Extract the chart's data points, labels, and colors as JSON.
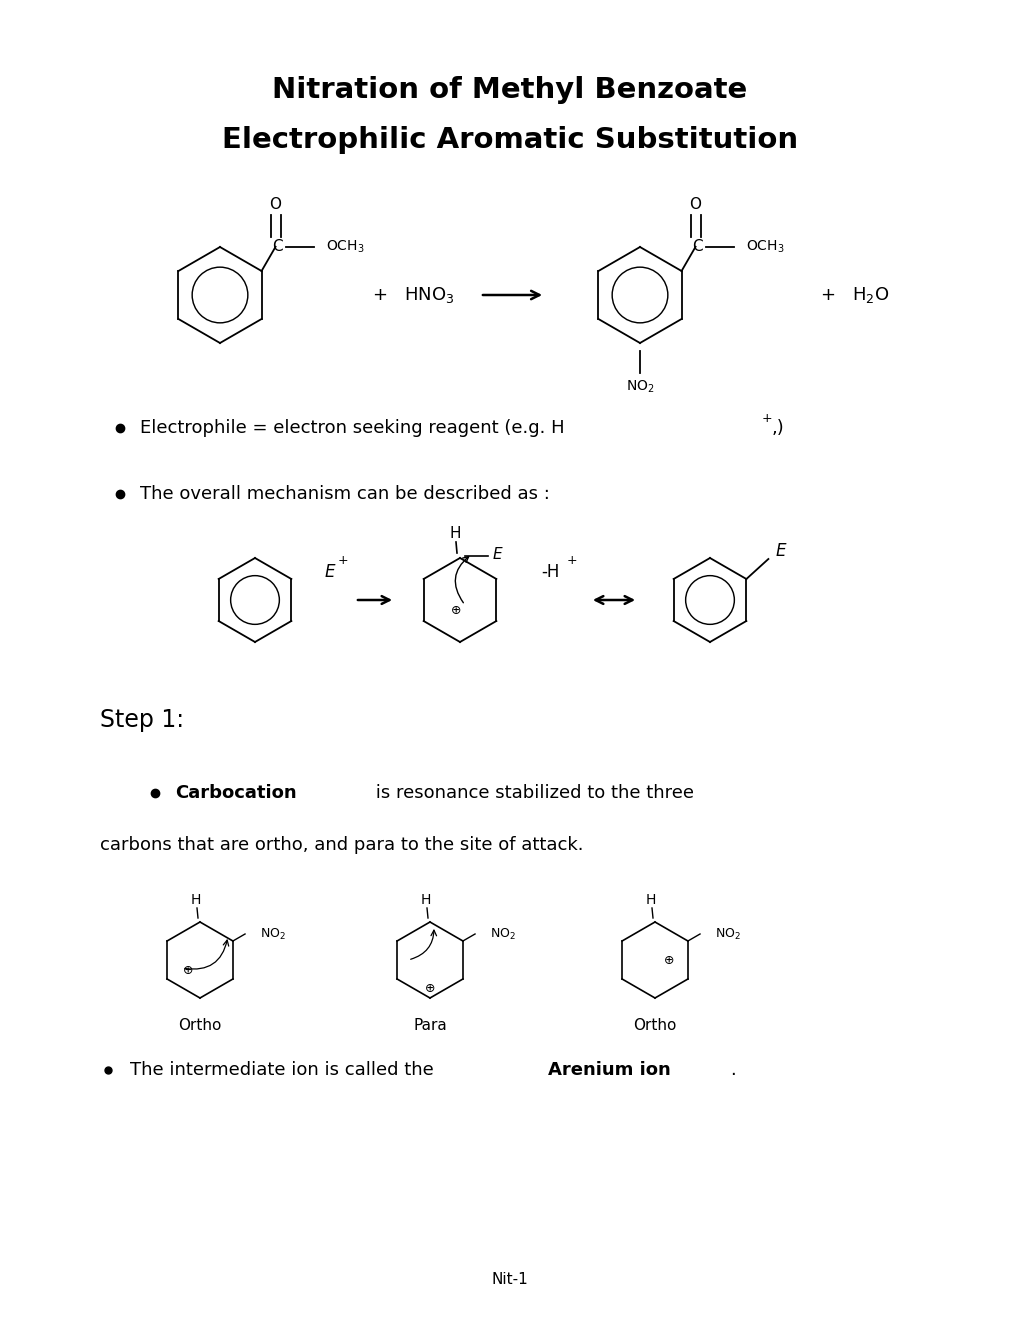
{
  "title_line1": "Nitration of Methyl Benzoate",
  "title_line2": "Electrophilic Aromatic Substitution",
  "bg_color": "#ffffff",
  "footer": "Nit-1",
  "title_fontsize": 21,
  "body_fontsize": 13,
  "label_fontsize": 11,
  "small_fontsize": 9
}
